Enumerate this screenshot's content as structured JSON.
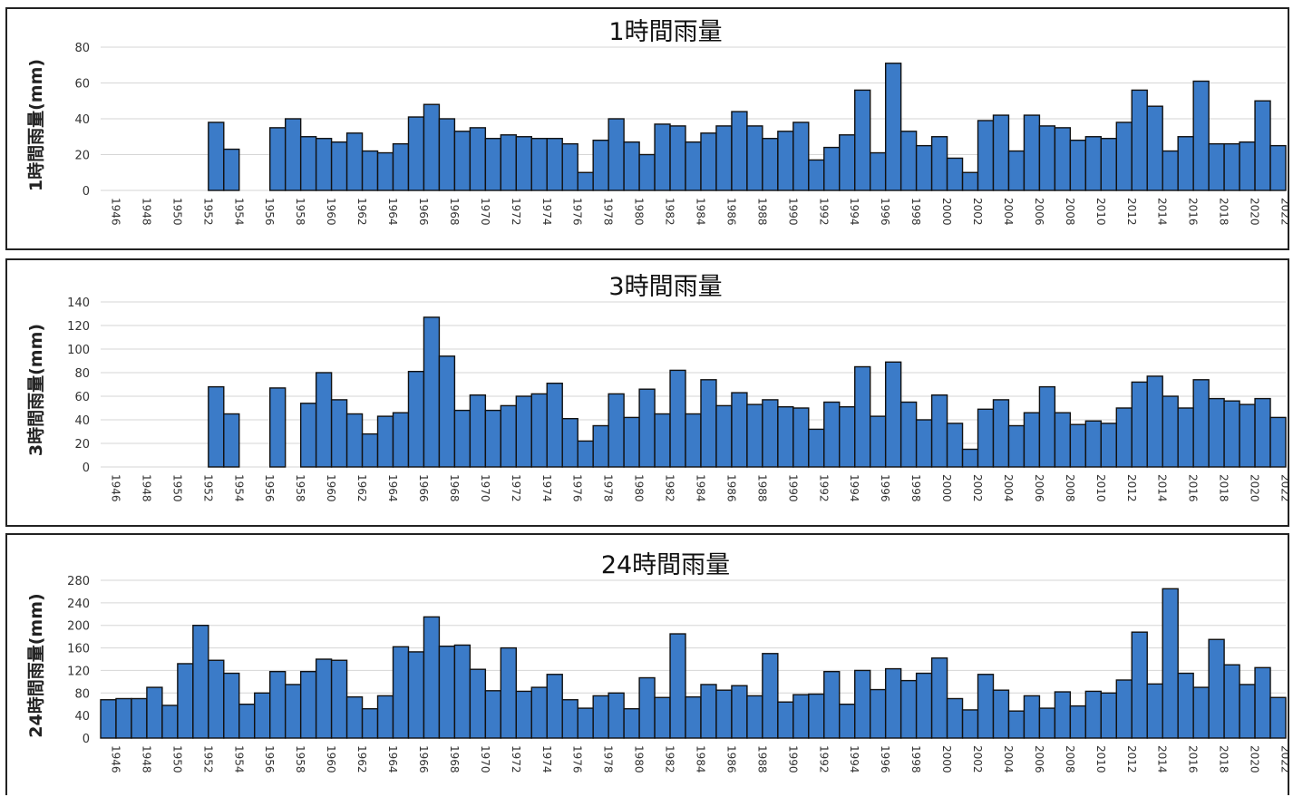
{
  "chart_data": [
    {
      "type": "bar",
      "title": "1時間雨量",
      "ylabel": "1時間雨量(mm)",
      "xlabel": "",
      "ylim": [
        0,
        80
      ],
      "yticks": [
        0,
        20,
        40,
        60,
        80
      ],
      "grid": true,
      "x": [
        1946,
        1947,
        1948,
        1949,
        1950,
        1951,
        1952,
        1953,
        1954,
        1955,
        1956,
        1957,
        1958,
        1959,
        1960,
        1961,
        1962,
        1963,
        1964,
        1965,
        1966,
        1967,
        1968,
        1969,
        1970,
        1971,
        1972,
        1973,
        1974,
        1975,
        1976,
        1977,
        1978,
        1979,
        1980,
        1981,
        1982,
        1983,
        1984,
        1985,
        1986,
        1987,
        1988,
        1989,
        1990,
        1991,
        1992,
        1993,
        1994,
        1995,
        1996,
        1997,
        1998,
        1999,
        2000,
        2001,
        2002,
        2003,
        2004,
        2005,
        2006,
        2007,
        2008,
        2009,
        2010,
        2011,
        2012,
        2013,
        2014,
        2015,
        2016,
        2017,
        2018,
        2019,
        2020,
        2021,
        2022
      ],
      "values": [
        null,
        null,
        null,
        null,
        null,
        null,
        null,
        38,
        23,
        null,
        null,
        35,
        40,
        30,
        29,
        27,
        32,
        22,
        21,
        26,
        41,
        48,
        40,
        33,
        35,
        29,
        31,
        30,
        29,
        29,
        26,
        10,
        28,
        40,
        27,
        20,
        37,
        36,
        27,
        32,
        36,
        44,
        36,
        29,
        33,
        38,
        17,
        24,
        31,
        56,
        21,
        71,
        33,
        25,
        30,
        18,
        10,
        39,
        42,
        22,
        42,
        36,
        35,
        28,
        30,
        29,
        38,
        56,
        47,
        22,
        30,
        61,
        26,
        26,
        27,
        50,
        25
      ],
      "xtick_labels": [
        "1946",
        "1948",
        "1950",
        "1952",
        "1954",
        "1956",
        "1958",
        "1960",
        "1962",
        "1964",
        "1966",
        "1968",
        "1970",
        "1972",
        "1974",
        "1976",
        "1978",
        "1980",
        "1982",
        "1984",
        "1986",
        "1988",
        "1990",
        "1992",
        "1994",
        "1996",
        "1998",
        "2000",
        "2002",
        "2004",
        "2006",
        "2008",
        "2010",
        "2012",
        "2014",
        "2016",
        "2018",
        "2020",
        "2022"
      ],
      "colors": {
        "bar": "#3b7bc8",
        "edge": "#111111"
      }
    },
    {
      "type": "bar",
      "title": "3時間雨量",
      "ylabel": "3時間雨量(mm)",
      "xlabel": "",
      "ylim": [
        0,
        140
      ],
      "yticks": [
        0,
        20,
        40,
        60,
        80,
        100,
        120,
        140
      ],
      "grid": true,
      "x": [
        1946,
        1947,
        1948,
        1949,
        1950,
        1951,
        1952,
        1953,
        1954,
        1955,
        1956,
        1957,
        1958,
        1959,
        1960,
        1961,
        1962,
        1963,
        1964,
        1965,
        1966,
        1967,
        1968,
        1969,
        1970,
        1971,
        1972,
        1973,
        1974,
        1975,
        1976,
        1977,
        1978,
        1979,
        1980,
        1981,
        1982,
        1983,
        1984,
        1985,
        1986,
        1987,
        1988,
        1989,
        1990,
        1991,
        1992,
        1993,
        1994,
        1995,
        1996,
        1997,
        1998,
        1999,
        2000,
        2001,
        2002,
        2003,
        2004,
        2005,
        2006,
        2007,
        2008,
        2009,
        2010,
        2011,
        2012,
        2013,
        2014,
        2015,
        2016,
        2017,
        2018,
        2019,
        2020,
        2021,
        2022
      ],
      "values": [
        null,
        null,
        null,
        null,
        null,
        null,
        null,
        68,
        45,
        null,
        null,
        67,
        null,
        54,
        80,
        57,
        45,
        28,
        43,
        46,
        81,
        127,
        94,
        48,
        61,
        48,
        52,
        60,
        62,
        71,
        41,
        22,
        35,
        62,
        42,
        66,
        45,
        82,
        45,
        74,
        52,
        63,
        53,
        57,
        51,
        50,
        32,
        55,
        51,
        85,
        43,
        89,
        55,
        40,
        61,
        37,
        15,
        49,
        57,
        35,
        46,
        68,
        46,
        36,
        39,
        37,
        50,
        72,
        77,
        60,
        50,
        74,
        58,
        56,
        53,
        58,
        42
      ],
      "xtick_labels": [
        "1946",
        "1948",
        "1950",
        "1952",
        "1954",
        "1956",
        "1958",
        "1960",
        "1962",
        "1964",
        "1966",
        "1968",
        "1970",
        "1972",
        "1974",
        "1976",
        "1978",
        "1980",
        "1982",
        "1984",
        "1986",
        "1988",
        "1990",
        "1992",
        "1994",
        "1996",
        "1998",
        "2000",
        "2002",
        "2004",
        "2006",
        "2008",
        "2010",
        "2012",
        "2014",
        "2016",
        "2018",
        "2020",
        "2022"
      ],
      "colors": {
        "bar": "#3b7bc8",
        "edge": "#111111"
      }
    },
    {
      "type": "bar",
      "title": "24時間雨量",
      "ylabel": "24時間雨量(mm)",
      "xlabel": "",
      "ylim": [
        0,
        280
      ],
      "yticks": [
        0,
        40,
        80,
        120,
        160,
        200,
        240,
        280
      ],
      "grid": true,
      "x": [
        1946,
        1947,
        1948,
        1949,
        1950,
        1951,
        1952,
        1953,
        1954,
        1955,
        1956,
        1957,
        1958,
        1959,
        1960,
        1961,
        1962,
        1963,
        1964,
        1965,
        1966,
        1967,
        1968,
        1969,
        1970,
        1971,
        1972,
        1973,
        1974,
        1975,
        1976,
        1977,
        1978,
        1979,
        1980,
        1981,
        1982,
        1983,
        1984,
        1985,
        1986,
        1987,
        1988,
        1989,
        1990,
        1991,
        1992,
        1993,
        1994,
        1995,
        1996,
        1997,
        1998,
        1999,
        2000,
        2001,
        2002,
        2003,
        2004,
        2005,
        2006,
        2007,
        2008,
        2009,
        2010,
        2011,
        2012,
        2013,
        2014,
        2015,
        2016,
        2017,
        2018,
        2019,
        2020,
        2021,
        2022
      ],
      "values": [
        68,
        70,
        70,
        90,
        58,
        132,
        200,
        138,
        115,
        60,
        80,
        118,
        95,
        118,
        140,
        138,
        73,
        52,
        75,
        162,
        153,
        215,
        163,
        165,
        122,
        84,
        160,
        83,
        90,
        113,
        68,
        53,
        75,
        80,
        52,
        107,
        72,
        185,
        73,
        95,
        85,
        93,
        75,
        150,
        64,
        77,
        78,
        118,
        60,
        120,
        86,
        123,
        102,
        115,
        142,
        70,
        50,
        113,
        85,
        48,
        75,
        53,
        82,
        57,
        83,
        80,
        103,
        188,
        96,
        265,
        115,
        90,
        175,
        130,
        95,
        125,
        72
      ],
      "xtick_labels": [
        "1946",
        "1948",
        "1950",
        "1952",
        "1954",
        "1956",
        "1958",
        "1960",
        "1962",
        "1964",
        "1966",
        "1968",
        "1970",
        "1972",
        "1974",
        "1976",
        "1978",
        "1980",
        "1982",
        "1984",
        "1986",
        "1988",
        "1990",
        "1992",
        "1994",
        "1996",
        "1998",
        "2000",
        "2002",
        "2004",
        "2006",
        "2008",
        "2010",
        "2012",
        "2014",
        "2016",
        "2018",
        "2020",
        "2022"
      ],
      "colors": {
        "bar": "#3b7bc8",
        "edge": "#111111"
      }
    }
  ]
}
